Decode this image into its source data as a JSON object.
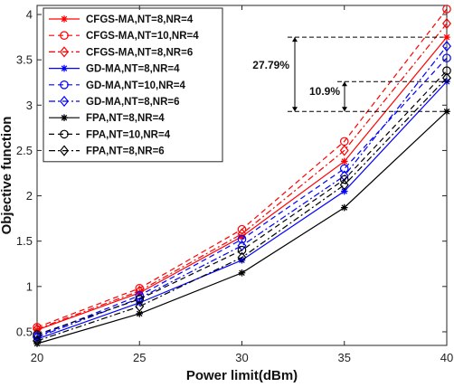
{
  "chart_data": {
    "type": "line",
    "xlabel": "Power limit(dBm)",
    "ylabel": "Objective function",
    "x": [
      20,
      25,
      30,
      35,
      40
    ],
    "xlim": [
      20,
      40
    ],
    "ylim": [
      0.35,
      4.1
    ],
    "xticks": [
      "20",
      "25",
      "30",
      "35",
      "40"
    ],
    "yticks": [
      "0.5",
      "1",
      "1.5",
      "2",
      "2.5",
      "3",
      "3.5",
      "4"
    ],
    "yticks_values": [
      0.5,
      1,
      1.5,
      2,
      2.5,
      3,
      3.5,
      4
    ],
    "grid": false,
    "legend_position": "top-left",
    "series": [
      {
        "name": "CFGS-MA,NT=8,NR=4",
        "color": "#ff0000",
        "dash": "solid",
        "marker": "star",
        "values": [
          0.52,
          0.93,
          1.55,
          2.38,
          3.75
        ]
      },
      {
        "name": "CFGS-MA,NT=10,NR=4",
        "color": "#ff0000",
        "dash": "dashed",
        "marker": "circle",
        "values": [
          0.55,
          0.98,
          1.63,
          2.6,
          4.06
        ]
      },
      {
        "name": "CFGS-MA,NT=8,NR=6",
        "color": "#ff0000",
        "dash": "dashdot",
        "marker": "diamond",
        "values": [
          0.53,
          0.95,
          1.58,
          2.5,
          3.9
        ]
      },
      {
        "name": "GD-MA,NT=8,NR=4",
        "color": "#0000ff",
        "dash": "solid",
        "marker": "star",
        "values": [
          0.42,
          0.82,
          1.29,
          2.05,
          3.26
        ]
      },
      {
        "name": "GD-MA,NT=10,NR=4",
        "color": "#0000ff",
        "dash": "dashed",
        "marker": "circle",
        "values": [
          0.45,
          0.9,
          1.52,
          2.3,
          3.52
        ]
      },
      {
        "name": "GD-MA,NT=8,NR=6",
        "color": "#0000ff",
        "dash": "dashdot",
        "marker": "diamond",
        "values": [
          0.44,
          0.87,
          1.45,
          2.22,
          3.65
        ]
      },
      {
        "name": "FPA,NT=8,NR=4",
        "color": "#000000",
        "dash": "solid",
        "marker": "star",
        "values": [
          0.37,
          0.7,
          1.15,
          1.87,
          2.93
        ]
      },
      {
        "name": "FPA,NT=10,NR=4",
        "color": "#000000",
        "dash": "dashed",
        "marker": "circle",
        "values": [
          0.47,
          0.86,
          1.4,
          2.18,
          3.38
        ]
      },
      {
        "name": "FPA,NT=8,NR=6",
        "color": "#000000",
        "dash": "dashdot",
        "marker": "diamond",
        "values": [
          0.4,
          0.78,
          1.32,
          2.12,
          3.3
        ]
      }
    ],
    "annotations": [
      {
        "text": "27.79%",
        "y_top": 3.75,
        "y_bottom": 2.93
      },
      {
        "text": "10.9%",
        "y_top": 3.26,
        "y_bottom": 2.93
      }
    ]
  }
}
